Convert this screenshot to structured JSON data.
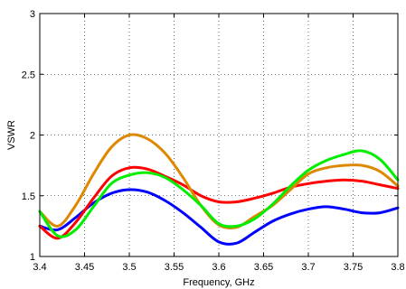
{
  "chart_data": {
    "type": "line",
    "title": "",
    "xlabel": "Frequency, GHz",
    "ylabel": "VSWR",
    "xlim": [
      3.4,
      3.8
    ],
    "ylim": [
      1,
      3
    ],
    "grid": true,
    "xticks": [
      3.4,
      3.45,
      3.5,
      3.55,
      3.6,
      3.65,
      3.7,
      3.75,
      3.8
    ],
    "xtick_labels": [
      "3.4",
      "3.45",
      "3.5",
      "3.55",
      "3.6",
      "3.65",
      "3.7",
      "3.75",
      "3.8"
    ],
    "yticks": [
      1,
      1.5,
      2,
      2.5,
      3
    ],
    "ytick_labels": [
      "1",
      "1.5",
      "2",
      "2.5",
      "3"
    ],
    "x": [
      3.4,
      3.42,
      3.44,
      3.46,
      3.48,
      3.5,
      3.52,
      3.54,
      3.56,
      3.58,
      3.6,
      3.62,
      3.64,
      3.66,
      3.68,
      3.7,
      3.72,
      3.74,
      3.76,
      3.78,
      3.8
    ],
    "series": [
      {
        "color": "#0000ff",
        "values": [
          1.25,
          1.22,
          1.32,
          1.44,
          1.52,
          1.55,
          1.53,
          1.46,
          1.36,
          1.24,
          1.12,
          1.11,
          1.2,
          1.29,
          1.35,
          1.39,
          1.41,
          1.39,
          1.36,
          1.36,
          1.4
        ]
      },
      {
        "color": "#ff0000",
        "values": [
          1.25,
          1.15,
          1.28,
          1.48,
          1.66,
          1.73,
          1.72,
          1.66,
          1.59,
          1.5,
          1.45,
          1.45,
          1.48,
          1.52,
          1.57,
          1.6,
          1.62,
          1.63,
          1.62,
          1.59,
          1.56
        ]
      },
      {
        "color": "#dd8800",
        "values": [
          1.37,
          1.25,
          1.42,
          1.68,
          1.9,
          2.0,
          1.97,
          1.85,
          1.65,
          1.42,
          1.26,
          1.24,
          1.33,
          1.42,
          1.55,
          1.68,
          1.73,
          1.75,
          1.75,
          1.7,
          1.58
        ]
      },
      {
        "color": "#00ee00",
        "values": [
          1.37,
          1.17,
          1.22,
          1.41,
          1.6,
          1.67,
          1.69,
          1.65,
          1.55,
          1.42,
          1.27,
          1.25,
          1.31,
          1.43,
          1.58,
          1.71,
          1.79,
          1.84,
          1.87,
          1.8,
          1.63
        ]
      }
    ]
  }
}
